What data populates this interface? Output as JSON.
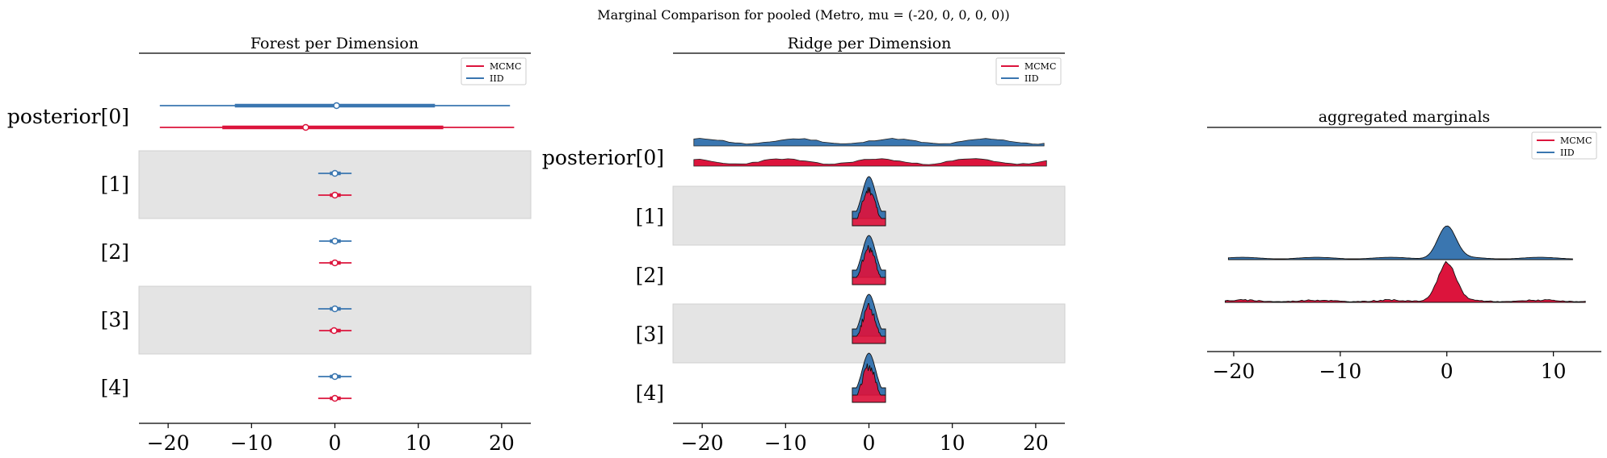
{
  "suptitle": "Marginal Comparison for pooled (Metro, mu = (-20, 0, 0, 0, 0))",
  "colors": {
    "MCMC": "#dc143c",
    "IID": "#3a76b0",
    "band": "#e4e4e4"
  },
  "legend": {
    "labels": [
      "MCMC",
      "IID"
    ]
  },
  "chart_data": [
    {
      "type": "forest",
      "title": "Forest per Dimension",
      "xlim": [
        -23.5,
        23.5
      ],
      "xticks": [
        -20,
        -10,
        0,
        10,
        20
      ],
      "xtick_labels": [
        "−20",
        "−10",
        "0",
        "10",
        "20"
      ],
      "legend_position": "upper-right",
      "row_labels": [
        "posterior[0]",
        "[1]",
        "[2]",
        "[3]",
        "[4]"
      ],
      "series": [
        {
          "name": "IID",
          "rows": [
            {
              "hdi94": [
                -21.0,
                21.0
              ],
              "iqr": [
                -12.0,
                12.0
              ],
              "mean": 0.2
            },
            {
              "hdi94": [
                -2.0,
                2.0
              ],
              "iqr": [
                -0.6,
                0.7
              ],
              "mean": 0.0
            },
            {
              "hdi94": [
                -1.9,
                2.0
              ],
              "iqr": [
                -0.6,
                0.7
              ],
              "mean": 0.0
            },
            {
              "hdi94": [
                -2.0,
                2.0
              ],
              "iqr": [
                -0.6,
                0.7
              ],
              "mean": 0.0
            },
            {
              "hdi94": [
                -2.0,
                2.0
              ],
              "iqr": [
                -0.6,
                0.7
              ],
              "mean": 0.0
            }
          ]
        },
        {
          "name": "MCMC",
          "rows": [
            {
              "hdi94": [
                -21.0,
                21.5
              ],
              "iqr": [
                -13.5,
                13.0
              ],
              "mean": -3.5
            },
            {
              "hdi94": [
                -2.0,
                2.0
              ],
              "iqr": [
                -0.6,
                0.7
              ],
              "mean": 0.0
            },
            {
              "hdi94": [
                -1.9,
                2.0
              ],
              "iqr": [
                -0.6,
                0.7
              ],
              "mean": 0.0
            },
            {
              "hdi94": [
                -1.9,
                2.0
              ],
              "iqr": [
                -0.6,
                0.7
              ],
              "mean": -0.1
            },
            {
              "hdi94": [
                -2.0,
                2.0
              ],
              "iqr": [
                -0.6,
                0.7
              ],
              "mean": 0.0
            }
          ]
        }
      ]
    },
    {
      "type": "ridge",
      "title": "Ridge per Dimension",
      "xlim": [
        -23.5,
        23.5
      ],
      "xticks": [
        -20,
        -10,
        0,
        10,
        20
      ],
      "xtick_labels": [
        "−20",
        "−10",
        "0",
        "10",
        "20"
      ],
      "legend_position": "upper-right",
      "row_labels": [
        "posterior[0]",
        "[1]",
        "[2]",
        "[3]",
        "[4]"
      ],
      "series": [
        {
          "name": "IID",
          "rows": [
            {
              "kind": "uniform",
              "range": [
                -21,
                21
              ]
            },
            {
              "kind": "normal",
              "mean": 0,
              "sd": 0.8,
              "range": [
                -2,
                2
              ]
            },
            {
              "kind": "normal",
              "mean": 0,
              "sd": 0.8,
              "range": [
                -2,
                2
              ]
            },
            {
              "kind": "normal",
              "mean": 0,
              "sd": 0.8,
              "range": [
                -2,
                2
              ]
            },
            {
              "kind": "normal",
              "mean": 0,
              "sd": 0.8,
              "range": [
                -2,
                2
              ]
            }
          ]
        },
        {
          "name": "MCMC",
          "rows": [
            {
              "kind": "uniform",
              "range": [
                -21,
                21.3
              ]
            },
            {
              "kind": "normal",
              "mean": 0,
              "sd": 0.8,
              "range": [
                -2,
                2
              ]
            },
            {
              "kind": "normal",
              "mean": 0,
              "sd": 0.8,
              "range": [
                -2,
                2
              ]
            },
            {
              "kind": "normal",
              "mean": 0,
              "sd": 0.8,
              "range": [
                -2,
                2
              ]
            },
            {
              "kind": "normal",
              "mean": 0,
              "sd": 0.8,
              "range": [
                -2,
                2
              ]
            }
          ]
        }
      ]
    },
    {
      "type": "ridge",
      "title": "aggregated marginals",
      "xlim": [
        -22.5,
        14.5
      ],
      "xticks": [
        -20,
        -10,
        0,
        10
      ],
      "xtick_labels": [
        "−20",
        "−10",
        "0",
        "10"
      ],
      "legend_position": "upper-right",
      "y_axis": "hidden",
      "series": [
        {
          "name": "IID",
          "range": [
            -20.5,
            11.8
          ],
          "peak_at": 0,
          "peak_sd": 0.85,
          "tail_level": 0.06
        },
        {
          "name": "MCMC",
          "range": [
            -20.8,
            13.0
          ],
          "peak_at": 0,
          "peak_sd": 0.85,
          "tail_level": 0.05
        }
      ]
    }
  ]
}
